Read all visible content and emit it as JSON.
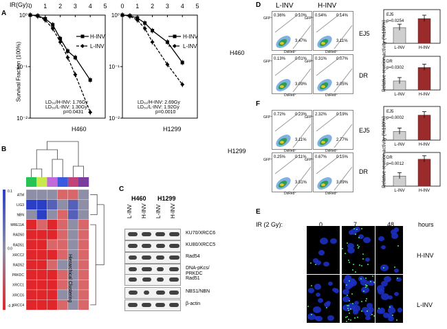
{
  "panelA": {
    "label": "A",
    "ir_label": "IR(Gy):",
    "x_ticks": [
      "0",
      "1",
      "2",
      "3",
      "4",
      "5"
    ],
    "ylabel": "Survival Fraction (100%)",
    "y_ticks": [
      "10⁰",
      "10⁻¹",
      "10⁻²"
    ],
    "left": {
      "cell": "H460",
      "ld1": "LD₅₀/H-INV: 1.76Gy",
      "ld2": "LD₅₀/L-INV: 1.30Gy",
      "p": "p=0.0431"
    },
    "right": {
      "cell": "H1299",
      "ld1": "LD₅₀/H-INV: 2.69Gy",
      "ld2": "LD₅₀/L-INV: 1.92Gy",
      "p": "p=0.0010"
    },
    "legend": [
      "H-INV",
      "L-INV"
    ]
  },
  "chart_data": [
    {
      "type": "line",
      "panel": "A-H460",
      "x": [
        0,
        0.5,
        1,
        1.5,
        2,
        2.5,
        3,
        4
      ],
      "series": [
        {
          "name": "H-INV",
          "values": [
            1.0,
            0.97,
            0.85,
            0.65,
            0.35,
            0.2,
            0.15,
            0.055
          ]
        },
        {
          "name": "L-INV",
          "values": [
            1.0,
            0.95,
            0.8,
            0.55,
            0.3,
            0.15,
            0.07,
            0.013
          ]
        }
      ],
      "xlim": [
        0,
        5
      ],
      "ylim": [
        0.01,
        1
      ],
      "yscale": "log"
    },
    {
      "type": "line",
      "panel": "A-H1299",
      "x": [
        0,
        0.5,
        1,
        1.5,
        2,
        3,
        4
      ],
      "series": [
        {
          "name": "H-INV",
          "values": [
            1.0,
            0.97,
            0.88,
            0.7,
            0.5,
            0.3,
            0.12
          ]
        },
        {
          "name": "L-INV",
          "values": [
            1.0,
            0.95,
            0.8,
            0.55,
            0.3,
            0.11,
            0.045
          ]
        }
      ],
      "xlim": [
        0,
        5
      ],
      "ylim": [
        0.01,
        1
      ],
      "yscale": "log"
    },
    {
      "type": "bar",
      "panel": "D-EJ5",
      "categories": [
        "L-INV",
        "H-INV"
      ],
      "values": [
        0.14,
        0.22
      ],
      "ylim": [
        0,
        0.3
      ],
      "tag": "EJ5",
      "p": "p=0.0254"
    },
    {
      "type": "bar",
      "panel": "D-DR",
      "categories": [
        "L-INV",
        "H-INV"
      ],
      "values": [
        0.04,
        0.1
      ],
      "ylim": [
        0,
        0.15
      ],
      "tag": "DR",
      "p": "p=0.0302"
    },
    {
      "type": "bar",
      "panel": "F-EJ5",
      "categories": [
        "L-INV",
        "H-INV"
      ],
      "values": [
        0.09,
        0.26
      ],
      "ylim": [
        0,
        0.35
      ],
      "tag": "EJ5",
      "p": "p=0.0002"
    },
    {
      "type": "bar",
      "panel": "F-DR",
      "categories": [
        "L-INV",
        "H-INV"
      ],
      "values": [
        0.03,
        0.08
      ],
      "ylim": [
        0,
        0.1
      ],
      "tag": "DR",
      "p": "p=0.0012"
    }
  ],
  "panelB": {
    "label": "B",
    "genes": [
      "ATM",
      "LIG3",
      "NBN",
      "MRE11A",
      "RAD50",
      "RAD51",
      "XRCC2",
      "RAD52",
      "PRKDC",
      "XRCC1",
      "XRCC6",
      "XRCC4"
    ],
    "scale": [
      "0.1",
      "0.0",
      "-0.1"
    ],
    "cluster_label": "Hierarchical Clustering",
    "col_colors": [
      "#27c455",
      "#c9e94a",
      "#c06bd9",
      "#3a5be0",
      "#c0437a",
      "#7a3e9e"
    ],
    "rows": [
      [
        0,
        0,
        0,
        1,
        1,
        0
      ],
      [
        -2,
        -2,
        -1,
        0,
        -1,
        0
      ],
      [
        0,
        -2,
        0,
        1,
        -1,
        0
      ],
      [
        2,
        1,
        2,
        1,
        0,
        1
      ],
      [
        2,
        2,
        2,
        1,
        0,
        1
      ],
      [
        2,
        2,
        1,
        1,
        0,
        1
      ],
      [
        2,
        2,
        2,
        1,
        0,
        1
      ],
      [
        2,
        2,
        1,
        0,
        0,
        1
      ],
      [
        2,
        2,
        2,
        1,
        0,
        1
      ],
      [
        2,
        2,
        2,
        1,
        0,
        1
      ],
      [
        2,
        2,
        2,
        0,
        0,
        1
      ],
      [
        2,
        2,
        2,
        1,
        0,
        1
      ]
    ]
  },
  "panelC": {
    "label": "C",
    "cells": [
      "H460",
      "H1299"
    ],
    "lanes": [
      "L-INV",
      "H-INV",
      "L-INV",
      "H-INV"
    ],
    "proteins": [
      "KU70/XRCC6",
      "KU80/XRCC5",
      "Rad54",
      "DNA-pKcs/\nPRKDC",
      "Rad51",
      "NBS1/NBN",
      "β-actin"
    ]
  },
  "panelD": {
    "label": "D",
    "cell": "H460",
    "cols": [
      "L-INV",
      "H-INV"
    ],
    "rows": [
      "EJ5",
      "DR"
    ],
    "quads": [
      [
        "0.36%",
        "0.10%",
        "3.47%"
      ],
      [
        "0.54%",
        "0.14%",
        "3.11%"
      ],
      [
        "0.13%",
        "0.01%",
        "3.09%"
      ],
      [
        "0.31%",
        "0.07%",
        "3.05%"
      ]
    ],
    "ylabel": "Relative reunion activity (%100%)"
  },
  "panelF": {
    "label": "F",
    "cell": "H1299",
    "rows": [
      "EJ5",
      "DR"
    ],
    "quads": [
      [
        "0.72%",
        "0.23%",
        "3.11%"
      ],
      [
        "2.32%",
        "0.19%",
        "2.77%"
      ],
      [
        "0.25%",
        "0.11%",
        "3.51%"
      ],
      [
        "0.67%",
        "0.15%",
        "3.09%"
      ]
    ],
    "ylabel": "Relative reunion activity (%100%)"
  },
  "facs": {
    "y": "GFP⁺",
    "x": "DsRed⁺"
  },
  "panelE": {
    "label": "E",
    "ir": "IR (2 Gy):",
    "times": [
      "0",
      "7",
      "48"
    ],
    "unit": "hours",
    "rows": [
      "H-INV",
      "L-INV"
    ]
  }
}
